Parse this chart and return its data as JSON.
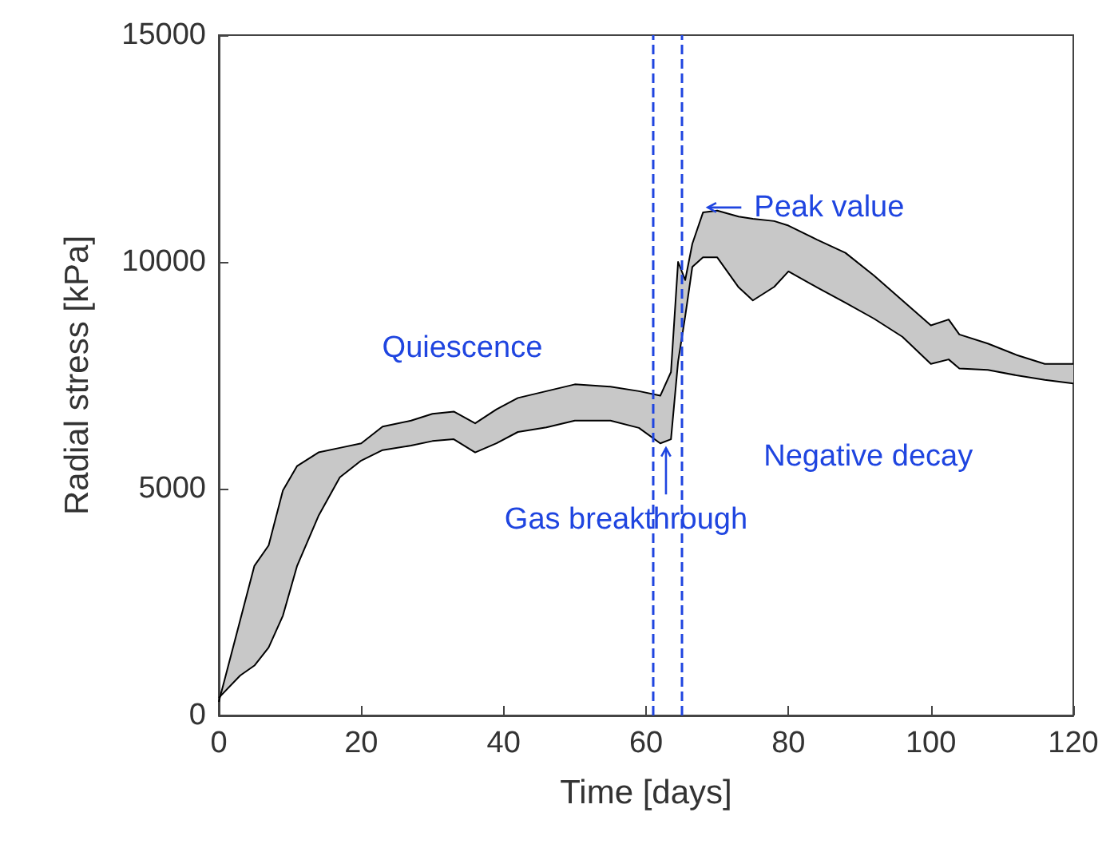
{
  "chart_data": {
    "type": "line",
    "xlabel": "Time [days]",
    "ylabel": "Radial stress [kPa]",
    "xlim": [
      0,
      120
    ],
    "xticks": [
      0,
      20,
      40,
      60,
      80,
      100,
      120
    ],
    "ylim": [
      0,
      15000
    ],
    "yticks": [
      0,
      5000,
      10000,
      15000
    ],
    "grid": false,
    "x": [
      0,
      3,
      5,
      7,
      9,
      11,
      14,
      17,
      20,
      23,
      27,
      30,
      33,
      36,
      39,
      42,
      46,
      50,
      55,
      59,
      62,
      63.5,
      64.5,
      65.5,
      66.5,
      68,
      70,
      73,
      75,
      78,
      80,
      84,
      88,
      92,
      96,
      100,
      102.5,
      104,
      108,
      112,
      116,
      120
    ],
    "series": [
      {
        "color": "#000000",
        "values": [
          300,
          2100,
          3300,
          3750,
          4960,
          5500,
          5800,
          5900,
          6000,
          6370,
          6500,
          6650,
          6700,
          6440,
          6750,
          7000,
          7150,
          7300,
          7250,
          7150,
          7050,
          7570,
          10000,
          9600,
          10400,
          11090,
          11130,
          11000,
          10950,
          10900,
          10800,
          10490,
          10200,
          9700,
          9150,
          8600,
          8730,
          8400,
          8200,
          7950,
          7750,
          7750
        ]
      },
      {
        "color": "#000000",
        "values": [
          390,
          880,
          1100,
          1500,
          2200,
          3300,
          4400,
          5250,
          5620,
          5850,
          5950,
          6050,
          6090,
          5800,
          6000,
          6250,
          6350,
          6500,
          6500,
          6340,
          6000,
          6090,
          7800,
          8800,
          9890,
          10100,
          10100,
          9440,
          9150,
          9450,
          9790,
          9440,
          9100,
          8750,
          8350,
          7750,
          7850,
          7650,
          7620,
          7500,
          7400,
          7320
        ]
      }
    ],
    "ref_lines": [
      {
        "axis": "x",
        "value": 61,
        "color": "#1f45e0",
        "line_style": "dashed"
      },
      {
        "axis": "x",
        "value": 65,
        "color": "#1f45e0",
        "line_style": "dashed"
      }
    ],
    "annotations": [
      "Quiescence",
      {
        "text": "Gas breakthrough",
        "x": 62.8,
        "y": 6000
      },
      {
        "text": "Peak value",
        "x": 68,
        "y": 11200
      },
      "Negative decay"
    ]
  }
}
